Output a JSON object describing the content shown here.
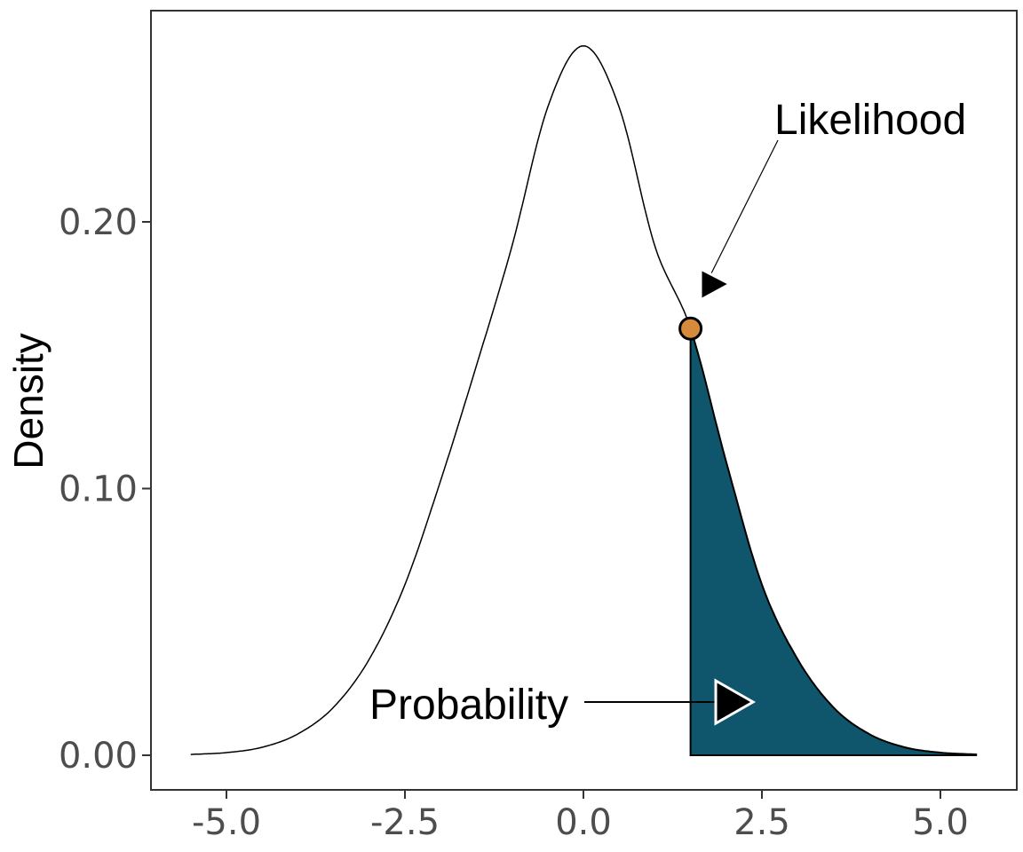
{
  "chart_data": {
    "type": "area",
    "title": "",
    "xlabel": "",
    "ylabel": "Density",
    "xlim": [
      -5.5,
      5.5
    ],
    "ylim": [
      0,
      0.265
    ],
    "x_ticks": [
      -5.0,
      -2.5,
      0.0,
      2.5,
      5.0
    ],
    "x_tick_labels": [
      "-5.0",
      "-2.5",
      "0.0",
      "2.5",
      "5.0"
    ],
    "y_ticks": [
      0.0,
      0.1,
      0.2
    ],
    "y_tick_labels": [
      "0.00",
      "0.10",
      "0.20"
    ],
    "grid": false,
    "curve": {
      "x": [
        -5.5,
        -5.0,
        -4.5,
        -4.0,
        -3.5,
        -3.0,
        -2.5,
        -2.0,
        -1.5,
        -1.0,
        -0.5,
        0.0,
        0.5,
        1.0,
        1.5,
        2.0,
        2.5,
        3.0,
        3.5,
        4.0,
        4.5,
        5.0,
        5.5
      ],
      "y": [
        0.0003,
        0.001,
        0.003,
        0.008,
        0.018,
        0.036,
        0.064,
        0.103,
        0.146,
        0.191,
        0.243,
        0.266,
        0.243,
        0.191,
        0.16,
        0.11,
        0.064,
        0.036,
        0.018,
        0.008,
        0.003,
        0.001,
        0.0003
      ]
    },
    "shaded_region": {
      "from": 1.5,
      "to": 5.5,
      "color": "#0f566d"
    },
    "point": {
      "x": 1.5,
      "y": 0.16,
      "color": "#d68a3c"
    },
    "annotations": [
      {
        "label": "Likelihood",
        "target": "point"
      },
      {
        "label": "Probability",
        "target": "shaded_region"
      }
    ]
  }
}
